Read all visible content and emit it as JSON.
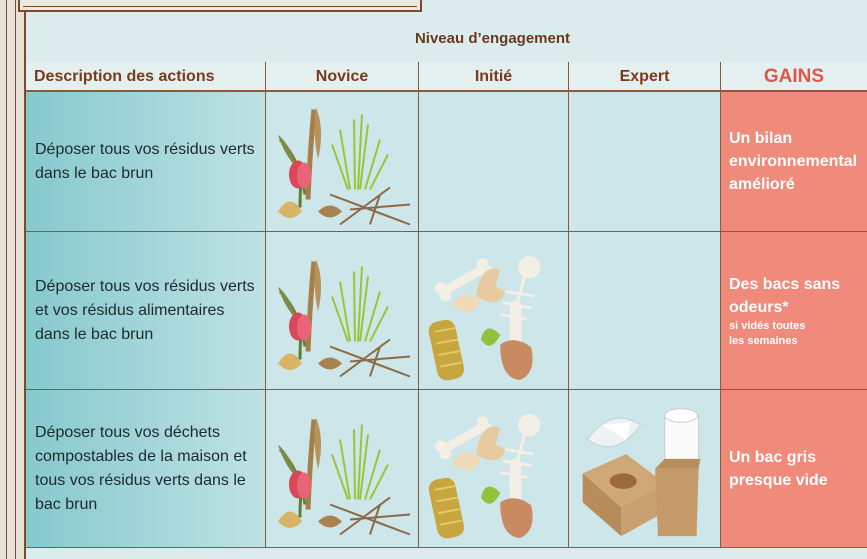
{
  "header": {
    "title": "Niveau d’engagement"
  },
  "table": {
    "headers": [
      "Description des actions",
      "Novice",
      "Initié",
      "Expert",
      "GAINS"
    ],
    "rows": [
      {
        "description": "Déposer tous vos résidus verts dans le bac brun",
        "gain": "Un bilan environnemental amélioré"
      },
      {
        "description": "Déposer tous vos résidus verts et vos résidus alimentaires dans le bac brun",
        "gain": "Des bacs sans odeurs*",
        "note": "si vidés toutes les semaines"
      },
      {
        "description": "Déposer tous vos déchets compostables de la maison et tous vos résidus verts dans le bac brun",
        "gain": "Un bac gris presque vide"
      }
    ]
  }
}
